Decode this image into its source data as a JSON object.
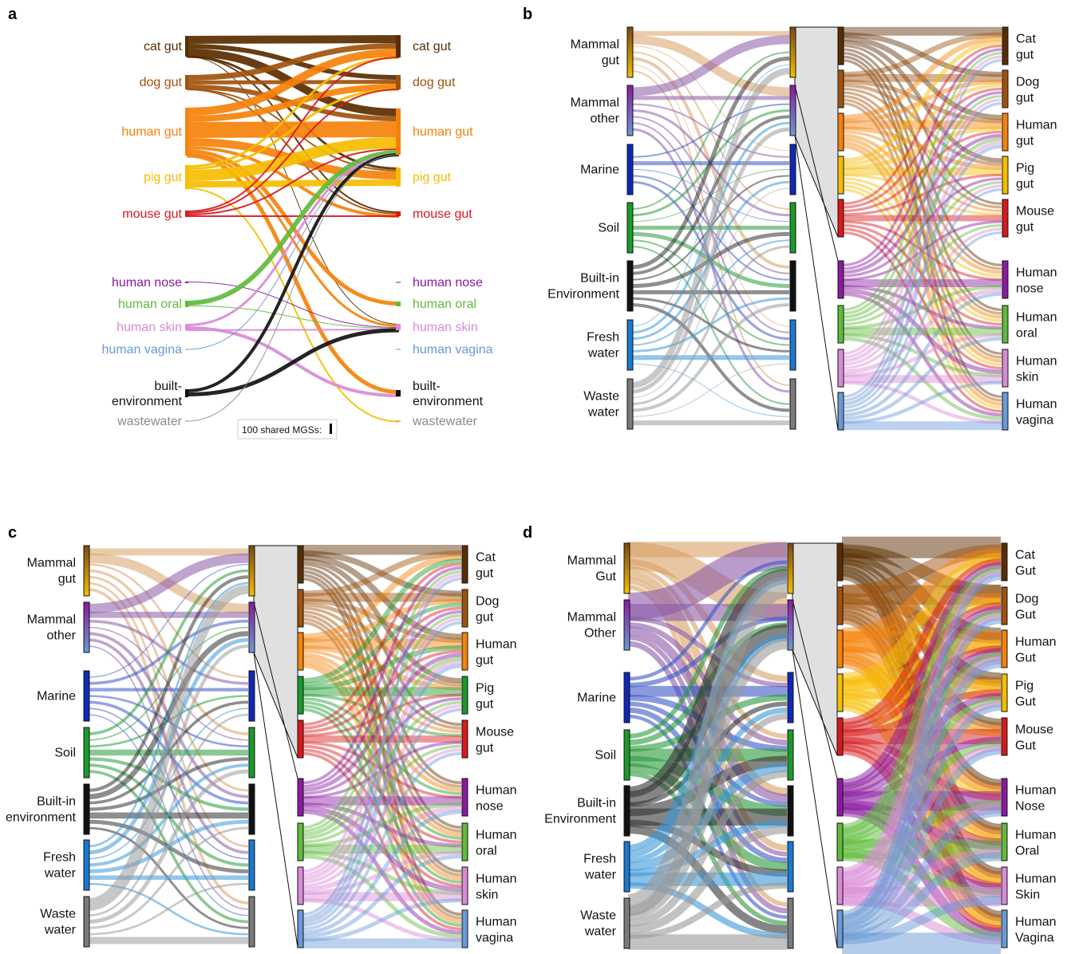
{
  "panels": {
    "a": {
      "letter": "a",
      "categories": [
        {
          "key": "cat",
          "label": "cat gut",
          "color": "#5a2d00"
        },
        {
          "key": "dog",
          "label": "dog gut",
          "color": "#a0520c"
        },
        {
          "key": "human",
          "label": "human gut",
          "color": "#f5820a"
        },
        {
          "key": "pig",
          "label": "pig gut",
          "color": "#f5bd00"
        },
        {
          "key": "mouse",
          "label": "mouse gut",
          "color": "#d7191c"
        },
        {
          "key": "nose",
          "label": "human nose",
          "color": "#8a1aa0"
        },
        {
          "key": "oral",
          "label": "human oral",
          "color": "#5fbb3c"
        },
        {
          "key": "skin",
          "label": "human skin",
          "color": "#d98ad6"
        },
        {
          "key": "vagina",
          "label": "human vagina",
          "color": "#6a9ad6"
        },
        {
          "key": "built",
          "label": [
            "built-",
            "environment"
          ],
          "color": "#111111"
        },
        {
          "key": "waste",
          "label": "wastewater",
          "color": "#8a8a8a"
        }
      ],
      "scale_label": "100 shared MGSs:"
    },
    "b": {
      "letter": "b",
      "sources": [
        {
          "key": "mg",
          "label": [
            "Mammal",
            "gut"
          ],
          "colors": [
            "#7a4a10",
            "#f5bd00"
          ]
        },
        {
          "key": "mo",
          "label": [
            "Mammal",
            "other"
          ],
          "colors": [
            "#8a1aa0",
            "#6a9ad6"
          ]
        },
        {
          "key": "ma",
          "label": [
            "Marine"
          ],
          "colors": [
            "#1028b8",
            "#1028b8"
          ]
        },
        {
          "key": "so",
          "label": [
            "Soil"
          ],
          "colors": [
            "#1a9a2a",
            "#1a9a2a"
          ]
        },
        {
          "key": "be",
          "label": [
            "Built-in",
            "Environment"
          ],
          "colors": [
            "#111111",
            "#111111"
          ]
        },
        {
          "key": "fw",
          "label": [
            "Fresh",
            "water"
          ],
          "colors": [
            "#1a78d0",
            "#1a78d0"
          ]
        },
        {
          "key": "ww",
          "label": [
            "Waste",
            "water"
          ],
          "colors": [
            "#7a7a7a",
            "#7a7a7a"
          ]
        }
      ],
      "targets": [
        {
          "key": "cat",
          "label": [
            "Cat",
            "gut"
          ],
          "color": "#5a2d00"
        },
        {
          "key": "dog",
          "label": [
            "Dog",
            "gut"
          ],
          "color": "#a0520c"
        },
        {
          "key": "human",
          "label": [
            "Human",
            "gut"
          ],
          "color": "#f5820a"
        },
        {
          "key": "pig",
          "label": [
            "Pig",
            "gut"
          ],
          "color": "#f5bd00"
        },
        {
          "key": "mouse",
          "label": [
            "Mouse",
            "gut"
          ],
          "color": "#d7191c"
        },
        {
          "key": "nose",
          "label": [
            "Human",
            "nose"
          ],
          "color": "#8a1aa0"
        },
        {
          "key": "oral",
          "label": [
            "Human",
            "oral"
          ],
          "color": "#5fbb3c"
        },
        {
          "key": "skin",
          "label": [
            "Human",
            "skin"
          ],
          "color": "#d98ad6"
        },
        {
          "key": "vagina",
          "label": [
            "Human",
            "vagina"
          ],
          "color": "#6a9ad6"
        }
      ]
    },
    "c": {
      "letter": "c",
      "sources": [
        {
          "key": "mg",
          "label": [
            "Mammal",
            "gut"
          ],
          "colors": [
            "#7a4a10",
            "#f5bd00"
          ]
        },
        {
          "key": "mo",
          "label": [
            "Mammal",
            "other"
          ],
          "colors": [
            "#8a1aa0",
            "#6a9ad6"
          ]
        },
        {
          "key": "ma",
          "label": [
            "Marine"
          ],
          "colors": [
            "#1028b8",
            "#1028b8"
          ]
        },
        {
          "key": "so",
          "label": [
            "Soil"
          ],
          "colors": [
            "#1a9a2a",
            "#1a9a2a"
          ]
        },
        {
          "key": "be",
          "label": [
            "Built-in",
            "environment"
          ],
          "colors": [
            "#111111",
            "#111111"
          ]
        },
        {
          "key": "fw",
          "label": [
            "Fresh",
            "water"
          ],
          "colors": [
            "#1a78d0",
            "#1a78d0"
          ]
        },
        {
          "key": "ww",
          "label": [
            "Waste",
            "water"
          ],
          "colors": [
            "#7a7a7a",
            "#7a7a7a"
          ]
        }
      ],
      "targets": [
        {
          "key": "cat",
          "label": [
            "Cat",
            "gut"
          ],
          "color": "#5a2d00"
        },
        {
          "key": "dog",
          "label": [
            "Dog",
            "gut"
          ],
          "color": "#a0520c"
        },
        {
          "key": "human",
          "label": [
            "Human",
            "gut"
          ],
          "color": "#f5820a"
        },
        {
          "key": "pig",
          "label": [
            "Pig",
            "gut"
          ],
          "color": "#1a9a2a"
        },
        {
          "key": "mouse",
          "label": [
            "Mouse",
            "gut"
          ],
          "color": "#d7191c"
        },
        {
          "key": "nose",
          "label": [
            "Human",
            "nose"
          ],
          "color": "#8a1aa0"
        },
        {
          "key": "oral",
          "label": [
            "Human",
            "oral"
          ],
          "color": "#5fbb3c"
        },
        {
          "key": "skin",
          "label": [
            "Human",
            "skin"
          ],
          "color": "#d98ad6"
        },
        {
          "key": "vagina",
          "label": [
            "Human",
            "vagina"
          ],
          "color": "#6a9ad6"
        }
      ]
    },
    "d": {
      "letter": "d",
      "sources": [
        {
          "key": "mg",
          "label": [
            "Mammal",
            "Gut"
          ],
          "colors": [
            "#7a4a10",
            "#f5bd00"
          ]
        },
        {
          "key": "mo",
          "label": [
            "Mammal",
            "Other"
          ],
          "colors": [
            "#8a1aa0",
            "#6a9ad6"
          ]
        },
        {
          "key": "ma",
          "label": [
            "Marine"
          ],
          "colors": [
            "#1028b8",
            "#1028b8"
          ]
        },
        {
          "key": "so",
          "label": [
            "Soil"
          ],
          "colors": [
            "#1a9a2a",
            "#1a9a2a"
          ]
        },
        {
          "key": "be",
          "label": [
            "Built-in",
            "Environment"
          ],
          "colors": [
            "#111111",
            "#111111"
          ]
        },
        {
          "key": "fw",
          "label": [
            "Fresh",
            "water"
          ],
          "colors": [
            "#1a78d0",
            "#1a78d0"
          ]
        },
        {
          "key": "ww",
          "label": [
            "Waste",
            "water"
          ],
          "colors": [
            "#7a7a7a",
            "#7a7a7a"
          ]
        }
      ],
      "targets": [
        {
          "key": "cat",
          "label": [
            "Cat",
            "Gut"
          ],
          "color": "#5a2d00"
        },
        {
          "key": "dog",
          "label": [
            "Dog",
            "Gut"
          ],
          "color": "#a0520c"
        },
        {
          "key": "human",
          "label": [
            "Human",
            "Gut"
          ],
          "color": "#f5820a"
        },
        {
          "key": "pig",
          "label": [
            "Pig",
            "Gut"
          ],
          "color": "#f5bd00"
        },
        {
          "key": "mouse",
          "label": [
            "Mouse",
            "Gut"
          ],
          "color": "#d7191c"
        },
        {
          "key": "nose",
          "label": [
            "Human",
            "Nose"
          ],
          "color": "#8a1aa0"
        },
        {
          "key": "oral",
          "label": [
            "Human",
            "Oral"
          ],
          "color": "#5fbb3c"
        },
        {
          "key": "skin",
          "label": [
            "Human",
            "Skin"
          ],
          "color": "#d98ad6"
        },
        {
          "key": "vagina",
          "label": [
            "Human",
            "Vagina"
          ],
          "color": "#6a9ad6"
        }
      ]
    }
  }
}
